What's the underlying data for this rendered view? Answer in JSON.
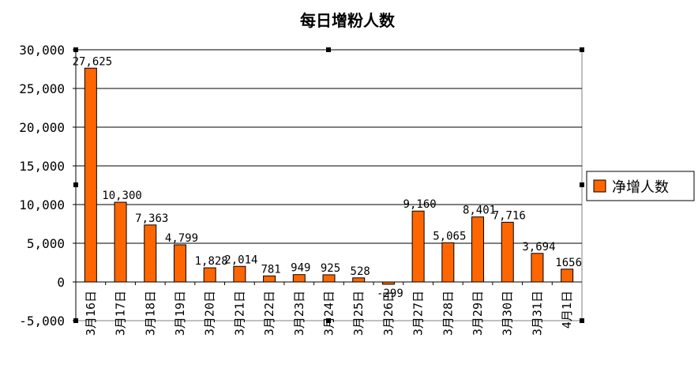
{
  "chart_data": {
    "type": "bar",
    "title": "每日增粉人数",
    "series": [
      {
        "name": "净增人数",
        "color": "#FF6600",
        "values": [
          27625,
          10300,
          7363,
          4799,
          1828,
          2014,
          781,
          949,
          925,
          528,
          -299,
          9160,
          5065,
          8401,
          7716,
          3694,
          1656
        ]
      }
    ],
    "categories": [
      "3月16日",
      "3月17日",
      "3月18日",
      "3月19日",
      "3月20日",
      "3月21日",
      "3月22日",
      "3月23日",
      "3月24日",
      "3月25日",
      "3月26日",
      "3月27日",
      "3月28日",
      "3月29日",
      "3月30日",
      "3月31日",
      "4月1日"
    ],
    "data_labels": [
      "27,625",
      "10,300",
      "7,363",
      "4,799",
      "1,828",
      "2,014",
      "781",
      "949",
      "925",
      "528",
      "-299",
      "9,160",
      "5,065",
      "8,401",
      "7,716",
      "3,694",
      "1656"
    ],
    "y_ticks": [
      "-5,000",
      "0",
      "5,000",
      "10,000",
      "15,000",
      "20,000",
      "25,000",
      "30,000"
    ],
    "ylim": [
      -5000,
      30000
    ],
    "grid": true,
    "legend_position": "right"
  }
}
